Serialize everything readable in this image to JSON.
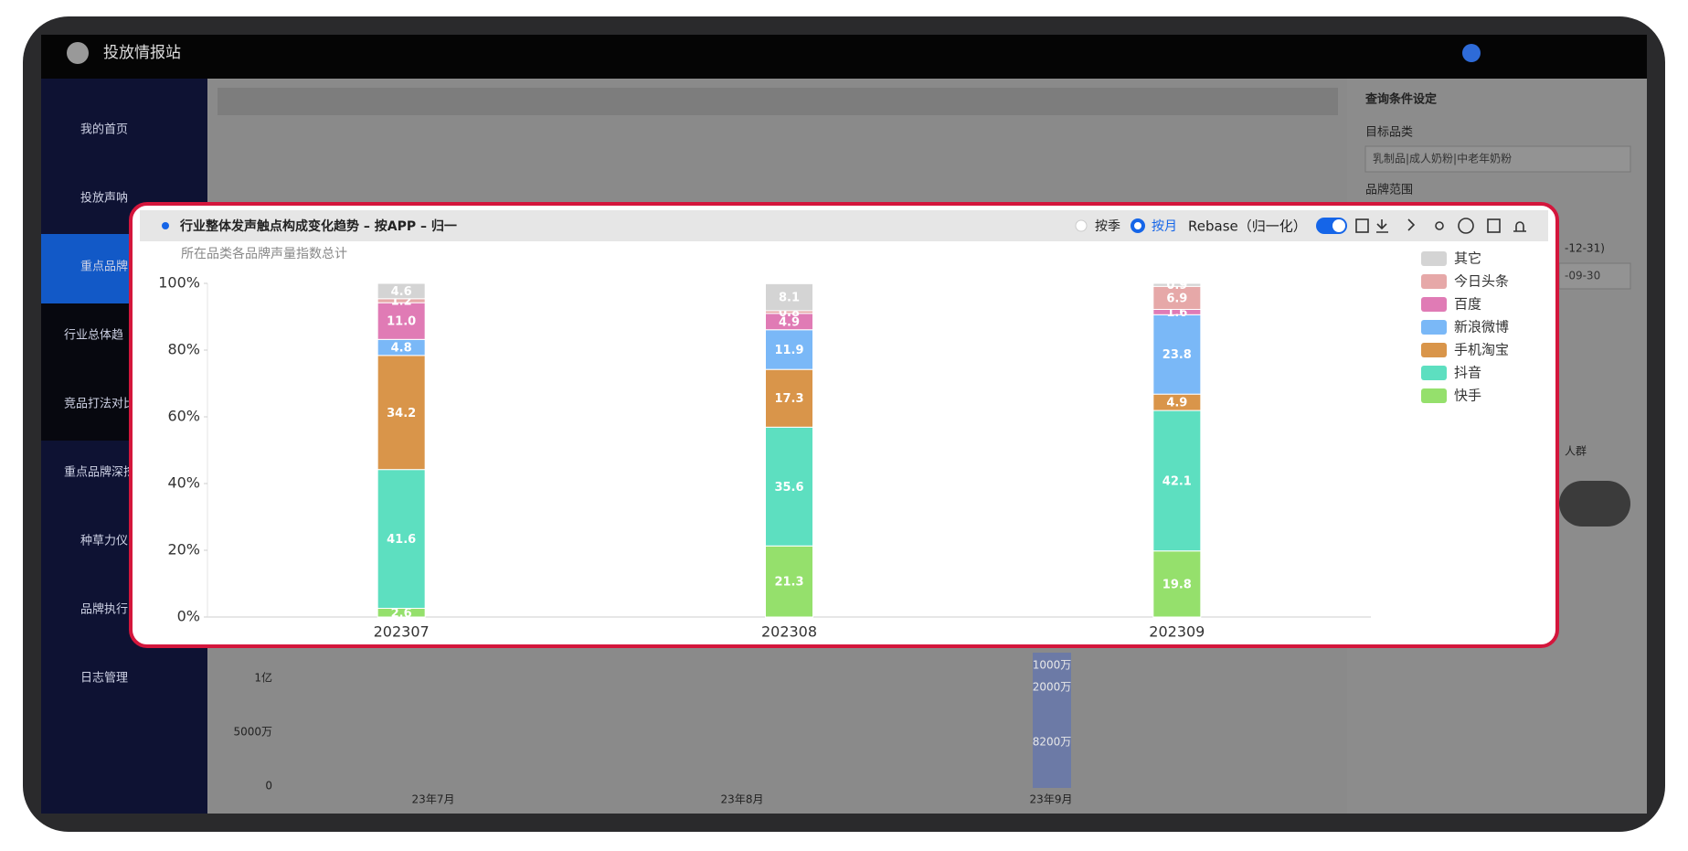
{
  "app": {
    "title": "投放情报站"
  },
  "sidebar": {
    "items": [
      "我的首页",
      "投放声呐",
      "重点品牌",
      "行业总体趋",
      "竞品打法对比",
      "重点品牌深挖",
      "种草力仪",
      "品牌执行",
      "日志管理"
    ]
  },
  "query_panel": {
    "title": "查询条件设定",
    "category_label": "目标品类",
    "category_value": "乳制品|成人奶粉|中老年奶粉",
    "brand_label": "品牌范围",
    "date_end": "-12-31)",
    "date_value": "-09-30",
    "crowd": "人群"
  },
  "background_chart": {
    "ytick_labels": [
      "1亿",
      "5000万",
      "0"
    ],
    "categories": [
      "23年7月",
      "23年8月",
      "23年9月"
    ],
    "labels": [
      "1000万",
      "2000万",
      "8200万"
    ]
  },
  "toggles": {
    "quarter": "按季",
    "month": "按月",
    "rebase": "Rebase（归一化）"
  },
  "chart_data": {
    "type": "stacked_bar",
    "title": "行业整体发声触点构成变化趋势 – 按APP – 归一",
    "subtitle": "所在品类各品牌声量指数总计",
    "categories": [
      "202307",
      "202308",
      "202309"
    ],
    "series": [
      {
        "name": "快手",
        "color": "#95e06c",
        "values": [
          2.6,
          21.3,
          19.8
        ]
      },
      {
        "name": "抖音",
        "color": "#5ddfc0",
        "values": [
          41.6,
          35.6,
          42.1
        ]
      },
      {
        "name": "手机淘宝",
        "color": "#d9954a",
        "values": [
          34.2,
          17.3,
          4.9
        ]
      },
      {
        "name": "新浪微博",
        "color": "#7ab8f7",
        "values": [
          4.8,
          11.9,
          23.8
        ]
      },
      {
        "name": "百度",
        "color": "#e07bb5",
        "values": [
          11.0,
          4.9,
          1.6
        ],
        "value_labels": [
          "11.0",
          "4.9",
          "1.6"
        ]
      },
      {
        "name": "今日头条",
        "color": "#e6a8a8",
        "values": [
          1.2,
          0.8,
          6.9
        ]
      },
      {
        "name": "其它",
        "color": "#d4d4d4",
        "values": [
          4.6,
          8.1,
          0.9
        ]
      }
    ],
    "ylim": [
      0,
      100
    ],
    "yticks": [
      {
        "value": 0,
        "label": "0%"
      },
      {
        "value": 20,
        "label": "20%"
      },
      {
        "value": 40,
        "label": "40%"
      },
      {
        "value": 60,
        "label": "60%"
      },
      {
        "value": 80,
        "label": "80%"
      },
      {
        "value": 100,
        "label": "100%"
      }
    ],
    "legend": "right"
  }
}
